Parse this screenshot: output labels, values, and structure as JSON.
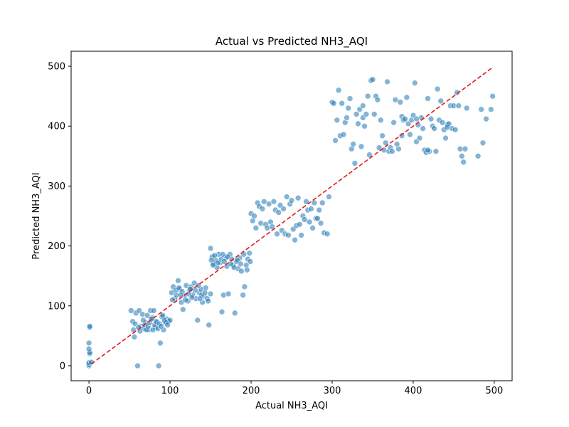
{
  "chart_data": {
    "type": "scatter",
    "title": "Actual vs Predicted NH3_AQI",
    "xlabel": "Actual NH3_AQI",
    "ylabel": "Predicted NH3_AQI",
    "xlim": [
      -22,
      522
    ],
    "ylim": [
      -25,
      525
    ],
    "xticks": [
      0,
      100,
      200,
      300,
      400,
      500
    ],
    "yticks": [
      0,
      100,
      200,
      300,
      400,
      500
    ],
    "xtick_labels": [
      "0",
      "100",
      "200",
      "300",
      "400",
      "500"
    ],
    "ytick_labels": [
      "0",
      "100",
      "200",
      "300",
      "400",
      "500"
    ],
    "grid": false,
    "point_color": "#1f77b4",
    "point_alpha": 0.55,
    "reference_line": {
      "style": "dashed",
      "color": "#e41a1c",
      "x": [
        3,
        498
      ],
      "y": [
        3,
        498
      ]
    },
    "points": [
      [
        0,
        0
      ],
      [
        0,
        2
      ],
      [
        0,
        5
      ],
      [
        1,
        20
      ],
      [
        1,
        22
      ],
      [
        0,
        28
      ],
      [
        0,
        38
      ],
      [
        1,
        64
      ],
      [
        1,
        66
      ],
      [
        3,
        6
      ],
      [
        52,
        92
      ],
      [
        55,
        60
      ],
      [
        56,
        48
      ],
      [
        58,
        88
      ],
      [
        60,
        0
      ],
      [
        62,
        92
      ],
      [
        64,
        66
      ],
      [
        66,
        86
      ],
      [
        68,
        62
      ],
      [
        70,
        72
      ],
      [
        72,
        84
      ],
      [
        74,
        60
      ],
      [
        76,
        92
      ],
      [
        78,
        80
      ],
      [
        80,
        92
      ],
      [
        82,
        64
      ],
      [
        84,
        72
      ],
      [
        86,
        0
      ],
      [
        88,
        38
      ],
      [
        90,
        82
      ],
      [
        92,
        60
      ],
      [
        94,
        74
      ],
      [
        96,
        78
      ],
      [
        98,
        74
      ],
      [
        100,
        76
      ],
      [
        54,
        74
      ],
      [
        57,
        70
      ],
      [
        61,
        64
      ],
      [
        63,
        58
      ],
      [
        67,
        76
      ],
      [
        69,
        68
      ],
      [
        71,
        60
      ],
      [
        73,
        66
      ],
      [
        75,
        72
      ],
      [
        77,
        78
      ],
      [
        79,
        60
      ],
      [
        81,
        68
      ],
      [
        83,
        74
      ],
      [
        85,
        62
      ],
      [
        87,
        70
      ],
      [
        89,
        66
      ],
      [
        91,
        84
      ],
      [
        93,
        76
      ],
      [
        95,
        72
      ],
      [
        97,
        68
      ],
      [
        102,
        122
      ],
      [
        104,
        132
      ],
      [
        106,
        112
      ],
      [
        108,
        118
      ],
      [
        110,
        142
      ],
      [
        112,
        128
      ],
      [
        114,
        106
      ],
      [
        116,
        94
      ],
      [
        118,
        118
      ],
      [
        120,
        134
      ],
      [
        122,
        108
      ],
      [
        124,
        126
      ],
      [
        126,
        132
      ],
      [
        128,
        118
      ],
      [
        130,
        138
      ],
      [
        132,
        112
      ],
      [
        134,
        76
      ],
      [
        136,
        122
      ],
      [
        138,
        128
      ],
      [
        140,
        106
      ],
      [
        142,
        116
      ],
      [
        144,
        130
      ],
      [
        146,
        112
      ],
      [
        148,
        68
      ],
      [
        150,
        120
      ],
      [
        103,
        110
      ],
      [
        107,
        126
      ],
      [
        111,
        130
      ],
      [
        115,
        124
      ],
      [
        119,
        110
      ],
      [
        123,
        120
      ],
      [
        127,
        114
      ],
      [
        131,
        126
      ],
      [
        135,
        134
      ],
      [
        139,
        118
      ],
      [
        143,
        122
      ],
      [
        147,
        108
      ],
      [
        113,
        118
      ],
      [
        125,
        128
      ],
      [
        137,
        112
      ],
      [
        150,
        196
      ],
      [
        152,
        182
      ],
      [
        154,
        170
      ],
      [
        156,
        176
      ],
      [
        158,
        164
      ],
      [
        160,
        186
      ],
      [
        162,
        172
      ],
      [
        164,
        90
      ],
      [
        166,
        118
      ],
      [
        168,
        180
      ],
      [
        170,
        166
      ],
      [
        172,
        120
      ],
      [
        174,
        186
      ],
      [
        176,
        178
      ],
      [
        178,
        168
      ],
      [
        180,
        88
      ],
      [
        182,
        174
      ],
      [
        184,
        162
      ],
      [
        186,
        180
      ],
      [
        188,
        158
      ],
      [
        190,
        118
      ],
      [
        192,
        132
      ],
      [
        194,
        168
      ],
      [
        196,
        178
      ],
      [
        198,
        188
      ],
      [
        151,
        176
      ],
      [
        155,
        184
      ],
      [
        159,
        172
      ],
      [
        163,
        178
      ],
      [
        167,
        174
      ],
      [
        171,
        182
      ],
      [
        175,
        170
      ],
      [
        179,
        164
      ],
      [
        183,
        176
      ],
      [
        187,
        170
      ],
      [
        191,
        186
      ],
      [
        195,
        160
      ],
      [
        199,
        174
      ],
      [
        153,
        168
      ],
      [
        165,
        186
      ],
      [
        200,
        254
      ],
      [
        202,
        242
      ],
      [
        204,
        250
      ],
      [
        206,
        230
      ],
      [
        208,
        272
      ],
      [
        210,
        266
      ],
      [
        212,
        238
      ],
      [
        214,
        262
      ],
      [
        216,
        274
      ],
      [
        218,
        236
      ],
      [
        220,
        230
      ],
      [
        222,
        270
      ],
      [
        224,
        240
      ],
      [
        226,
        232
      ],
      [
        228,
        274
      ],
      [
        230,
        260
      ],
      [
        232,
        220
      ],
      [
        234,
        256
      ],
      [
        236,
        268
      ],
      [
        238,
        226
      ],
      [
        240,
        262
      ],
      [
        242,
        220
      ],
      [
        244,
        282
      ],
      [
        246,
        218
      ],
      [
        248,
        270
      ],
      [
        250,
        276
      ],
      [
        252,
        228
      ],
      [
        254,
        210
      ],
      [
        256,
        234
      ],
      [
        258,
        280
      ],
      [
        260,
        236
      ],
      [
        262,
        218
      ],
      [
        264,
        250
      ],
      [
        266,
        244
      ],
      [
        268,
        274
      ],
      [
        270,
        260
      ],
      [
        272,
        240
      ],
      [
        274,
        262
      ],
      [
        276,
        230
      ],
      [
        278,
        272
      ],
      [
        280,
        246
      ],
      [
        282,
        246
      ],
      [
        284,
        260
      ],
      [
        286,
        238
      ],
      [
        288,
        272
      ],
      [
        290,
        222
      ],
      [
        294,
        220
      ],
      [
        296,
        282
      ],
      [
        300,
        440
      ],
      [
        302,
        438
      ],
      [
        304,
        376
      ],
      [
        306,
        410
      ],
      [
        308,
        460
      ],
      [
        310,
        384
      ],
      [
        312,
        438
      ],
      [
        314,
        386
      ],
      [
        316,
        406
      ],
      [
        318,
        414
      ],
      [
        320,
        430
      ],
      [
        322,
        446
      ],
      [
        324,
        362
      ],
      [
        326,
        370
      ],
      [
        328,
        338
      ],
      [
        330,
        420
      ],
      [
        332,
        404
      ],
      [
        334,
        428
      ],
      [
        336,
        366
      ],
      [
        338,
        414
      ],
      [
        340,
        400
      ],
      [
        342,
        420
      ],
      [
        344,
        450
      ],
      [
        346,
        352
      ],
      [
        348,
        476
      ],
      [
        350,
        478
      ],
      [
        352,
        420
      ],
      [
        354,
        450
      ],
      [
        356,
        444
      ],
      [
        358,
        364
      ],
      [
        360,
        410
      ],
      [
        362,
        384
      ],
      [
        364,
        360
      ],
      [
        366,
        372
      ],
      [
        368,
        474
      ],
      [
        370,
        358
      ],
      [
        372,
        364
      ],
      [
        374,
        358
      ],
      [
        376,
        406
      ],
      [
        378,
        444
      ],
      [
        380,
        370
      ],
      [
        382,
        362
      ],
      [
        384,
        440
      ],
      [
        386,
        416
      ],
      [
        388,
        410
      ],
      [
        390,
        412
      ],
      [
        392,
        448
      ],
      [
        394,
        404
      ],
      [
        396,
        386
      ],
      [
        398,
        410
      ],
      [
        400,
        418
      ],
      [
        402,
        472
      ],
      [
        404,
        374
      ],
      [
        406,
        402
      ],
      [
        408,
        380
      ],
      [
        410,
        414
      ],
      [
        412,
        396
      ],
      [
        414,
        360
      ],
      [
        416,
        356
      ],
      [
        418,
        446
      ],
      [
        420,
        358
      ],
      [
        422,
        412
      ],
      [
        424,
        400
      ],
      [
        426,
        396
      ],
      [
        428,
        358
      ],
      [
        430,
        462
      ],
      [
        432,
        410
      ],
      [
        434,
        442
      ],
      [
        436,
        406
      ],
      [
        438,
        394
      ],
      [
        440,
        380
      ],
      [
        442,
        402
      ],
      [
        444,
        404
      ],
      [
        446,
        434
      ],
      [
        448,
        396
      ],
      [
        450,
        434
      ],
      [
        452,
        394
      ],
      [
        454,
        456
      ],
      [
        456,
        434
      ],
      [
        458,
        362
      ],
      [
        460,
        350
      ],
      [
        462,
        340
      ],
      [
        464,
        362
      ],
      [
        466,
        430
      ],
      [
        480,
        350
      ],
      [
        484,
        428
      ],
      [
        486,
        372
      ],
      [
        490,
        412
      ],
      [
        496,
        428
      ],
      [
        498,
        450
      ],
      [
        442,
        398
      ],
      [
        418,
        360
      ],
      [
        404,
        412
      ],
      [
        386,
        384
      ],
      [
        338,
        434
      ]
    ]
  }
}
